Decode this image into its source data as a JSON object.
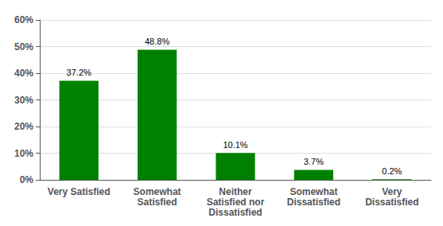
{
  "chart_data": {
    "type": "bar",
    "categories": [
      "Very Satisfied",
      "Somewhat\nSatisfied",
      "Neither\nSatisfied nor\nDissatisfied",
      "Somewhat\nDissatisfied",
      "Very\nDissatisfied"
    ],
    "values": [
      37.2,
      48.8,
      10.1,
      3.7,
      0.2
    ],
    "value_labels": [
      "37.2%",
      "48.8%",
      "10.1%",
      "3.7%",
      "0.2%"
    ],
    "data_labels": true,
    "color": "#008000",
    "ylim": [
      0,
      60
    ],
    "yticks": [
      {
        "value": 0,
        "label": "0%"
      },
      {
        "value": 10,
        "label": "10%"
      },
      {
        "value": 20,
        "label": "20%"
      },
      {
        "value": 30,
        "label": "30%"
      },
      {
        "value": 40,
        "label": "40%"
      },
      {
        "value": 50,
        "label": "50%"
      },
      {
        "value": 60,
        "label": "60%"
      }
    ],
    "grid": true
  }
}
